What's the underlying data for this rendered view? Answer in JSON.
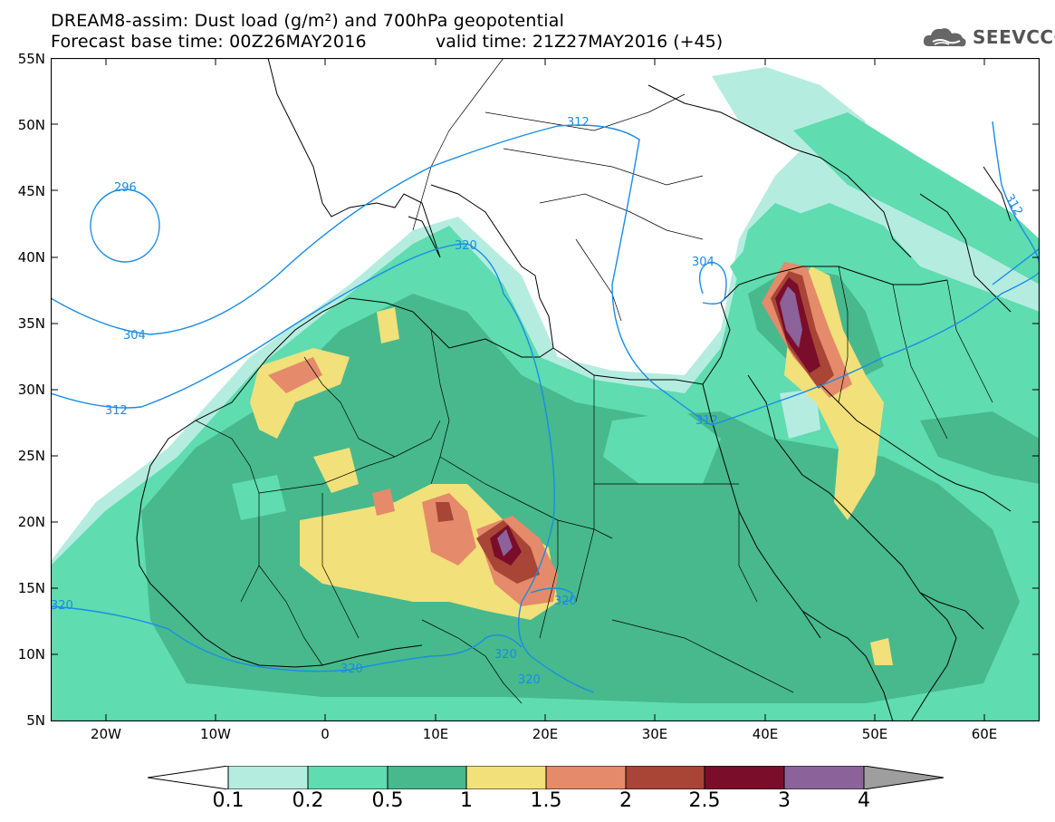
{
  "header": {
    "title_line1": "DREAM8-assim: Dust load (g/m²) and 700hPa geopotential",
    "title_line2": "Forecast base time: 00Z26MAY2016",
    "valid_time": "valid time: 21Z27MAY2016 (+45)",
    "logo_text": "SEEVCCC"
  },
  "map": {
    "lat_labels": [
      "55N",
      "50N",
      "45N",
      "40N",
      "35N",
      "30N",
      "25N",
      "20N",
      "15N",
      "10N",
      "5N"
    ],
    "lon_labels": [
      "20W",
      "10W",
      "0",
      "10E",
      "20E",
      "30E",
      "40E",
      "50E",
      "60E"
    ],
    "contour_labels": [
      "296",
      "304",
      "312",
      "312",
      "320",
      "304",
      "312",
      "320",
      "320",
      "320",
      "320",
      "312"
    ],
    "colors": {
      "ocean_land": "#ffffff",
      "coast": "#000000",
      "contour": "#1a8ce6"
    }
  },
  "colorbar": {
    "labels": [
      "0.1",
      "0.2",
      "0.5",
      "1",
      "1.5",
      "2",
      "2.5",
      "3",
      "4"
    ],
    "colors": [
      "#b5ece0",
      "#5fdcb0",
      "#47b98d",
      "#f2e07a",
      "#e58a6a",
      "#a84536",
      "#7a0d2a",
      "#8c629b"
    ],
    "over_color": "#9e9e9e",
    "under_color": "#ffffff"
  }
}
